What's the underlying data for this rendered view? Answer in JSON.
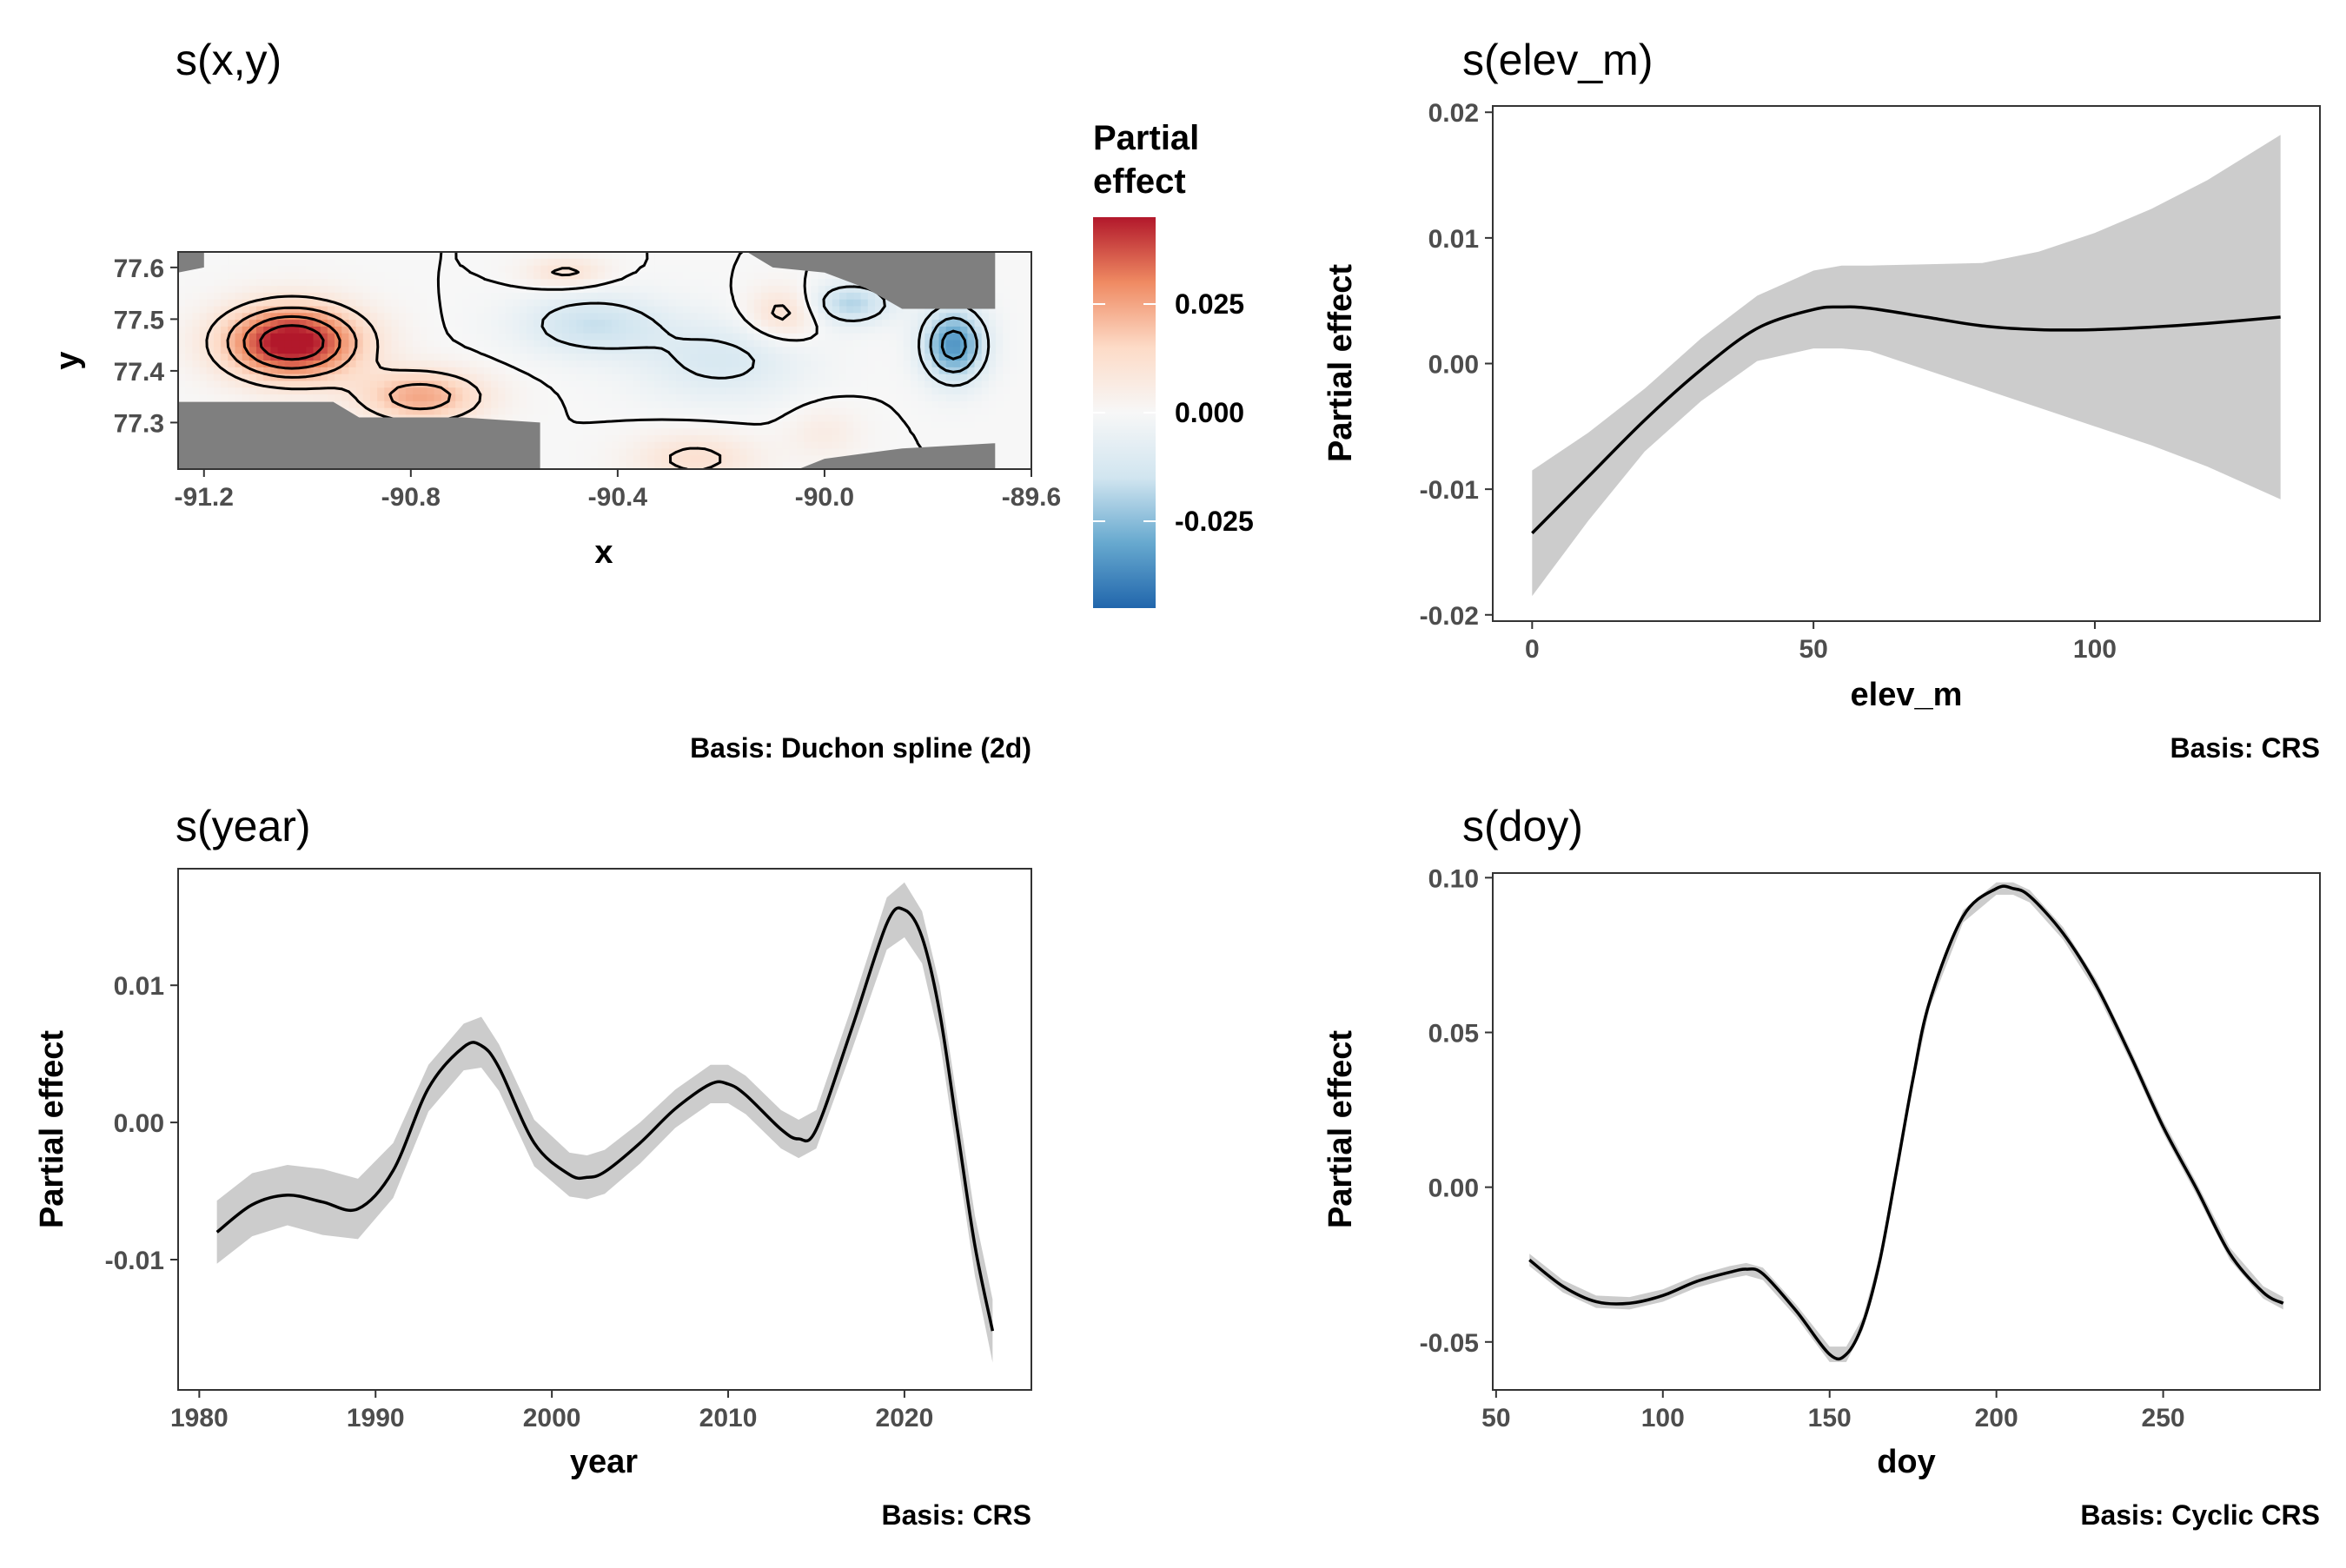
{
  "chart_data": [
    {
      "id": "sxy",
      "type": "heatmap",
      "title": "s(x,y)",
      "xlabel": "x",
      "ylabel": "y",
      "xlim": [
        -91.25,
        -89.6
      ],
      "ylim": [
        77.21,
        77.63
      ],
      "xticks": [
        -91.2,
        -90.8,
        -90.4,
        -90.0,
        -89.6
      ],
      "xtick_labels": [
        "-91.2",
        "-90.8",
        "-90.4",
        "-90.0",
        "-89.6"
      ],
      "yticks": [
        77.3,
        77.4,
        77.5,
        77.6
      ],
      "ytick_labels": [
        "77.3",
        "77.4",
        "77.5",
        "77.6"
      ],
      "legend": {
        "title_lines": [
          "Partial",
          "effect"
        ],
        "range": [
          -0.045,
          0.045
        ],
        "ticks": [
          0.025,
          0.0,
          -0.025
        ],
        "tick_labels": [
          "0.025",
          "0.000",
          "-0.025"
        ],
        "colors": [
          "#b2182b",
          "#ef8a62",
          "#fddbc7",
          "#f7f7f7",
          "#d1e5f0",
          "#67a9cf",
          "#2166ac"
        ],
        "placement": "right"
      },
      "blobs": [
        {
          "x": -91.03,
          "y": 77.455,
          "sx": 0.13,
          "sy": 0.07,
          "value": 0.05
        },
        {
          "x": -90.78,
          "y": 77.35,
          "sx": 0.12,
          "sy": 0.05,
          "value": 0.025
        },
        {
          "x": -90.5,
          "y": 77.59,
          "sx": 0.08,
          "sy": 0.03,
          "value": 0.012
        },
        {
          "x": -90.45,
          "y": 77.49,
          "sx": 0.14,
          "sy": 0.06,
          "value": -0.016
        },
        {
          "x": -90.2,
          "y": 77.42,
          "sx": 0.16,
          "sy": 0.08,
          "value": -0.012
        },
        {
          "x": -90.08,
          "y": 77.51,
          "sx": 0.07,
          "sy": 0.05,
          "value": 0.014
        },
        {
          "x": -89.95,
          "y": 77.53,
          "sx": 0.08,
          "sy": 0.04,
          "value": -0.02
        },
        {
          "x": -89.75,
          "y": 77.45,
          "sx": 0.06,
          "sy": 0.07,
          "value": -0.035
        },
        {
          "x": -90.25,
          "y": 77.23,
          "sx": 0.12,
          "sy": 0.05,
          "value": 0.012
        },
        {
          "x": -90.0,
          "y": 77.28,
          "sx": 0.07,
          "sy": 0.05,
          "value": 0.006
        }
      ],
      "missing_regions": [
        [
          [
            -91.25,
            77.21
          ],
          [
            -91.25,
            77.34
          ],
          [
            -90.95,
            77.34
          ],
          [
            -90.9,
            77.31
          ],
          [
            -90.7,
            77.31
          ],
          [
            -90.55,
            77.3
          ],
          [
            -90.55,
            77.21
          ]
        ],
        [
          [
            -90.15,
            77.63
          ],
          [
            -89.67,
            77.63
          ],
          [
            -89.67,
            77.52
          ],
          [
            -89.85,
            77.52
          ],
          [
            -89.92,
            77.56
          ],
          [
            -90.0,
            77.59
          ],
          [
            -90.1,
            77.6
          ]
        ],
        [
          [
            -90.05,
            77.21
          ],
          [
            -89.67,
            77.21
          ],
          [
            -89.67,
            77.26
          ],
          [
            -89.85,
            77.25
          ],
          [
            -90.0,
            77.23
          ]
        ],
        [
          [
            -91.25,
            77.63
          ],
          [
            -91.2,
            77.63
          ],
          [
            -91.2,
            77.6
          ],
          [
            -91.25,
            77.59
          ]
        ]
      ],
      "caption": "Basis: Duchon spline (2d)"
    },
    {
      "id": "selev",
      "type": "line",
      "title": "s(elev_m)",
      "xlabel": "elev_m",
      "ylabel": "Partial effect",
      "xlim": [
        -7,
        140
      ],
      "ylim": [
        -0.0205,
        0.0205
      ],
      "xticks": [
        0,
        50,
        100
      ],
      "xtick_labels": [
        "0",
        "50",
        "100"
      ],
      "yticks": [
        -0.02,
        -0.01,
        0.0,
        0.01,
        0.02
      ],
      "ytick_labels": [
        "-0.02",
        "-0.01",
        "0.00",
        "0.01",
        "0.02"
      ],
      "grid": false,
      "x": [
        0,
        10,
        20,
        30,
        40,
        50,
        55,
        60,
        70,
        80,
        90,
        100,
        110,
        120,
        133
      ],
      "y": [
        -0.0135,
        -0.009,
        -0.0045,
        -0.0005,
        0.0028,
        0.0043,
        0.0045,
        0.0044,
        0.0037,
        0.003,
        0.0027,
        0.0027,
        0.0029,
        0.0032,
        0.0037
      ],
      "lower": [
        -0.0185,
        -0.0125,
        -0.007,
        -0.003,
        0.0002,
        0.0012,
        0.0012,
        0.001,
        -0.0005,
        -0.002,
        -0.0035,
        -0.005,
        -0.0065,
        -0.0082,
        -0.0108
      ],
      "upper": [
        -0.0085,
        -0.0055,
        -0.002,
        0.002,
        0.0054,
        0.0074,
        0.0078,
        0.0078,
        0.0079,
        0.008,
        0.0089,
        0.0104,
        0.0123,
        0.0146,
        0.0182
      ],
      "caption": "Basis: CRS"
    },
    {
      "id": "syear",
      "type": "line",
      "title": "s(year)",
      "xlabel": "year",
      "ylabel": "Partial effect",
      "xlim": [
        1978.8,
        2027.2
      ],
      "ylim": [
        -0.0195,
        0.0185
      ],
      "xticks": [
        1980,
        1990,
        2000,
        2010,
        2020
      ],
      "xtick_labels": [
        "1980",
        "1990",
        "2000",
        "2010",
        "2020"
      ],
      "yticks": [
        -0.01,
        0.0,
        0.01
      ],
      "ytick_labels": [
        "-0.01",
        "0.00",
        "0.01"
      ],
      "grid": false,
      "x": [
        1981,
        1983,
        1985,
        1987,
        1989,
        1991,
        1993,
        1995,
        1996,
        1997,
        1999,
        2001,
        2002,
        2003,
        2005,
        2007,
        2009,
        2010,
        2011,
        2013,
        2014,
        2015,
        2017,
        2019,
        2020,
        2021,
        2022,
        2023,
        2024,
        2025
      ],
      "y": [
        -0.008,
        -0.006,
        -0.0053,
        -0.0058,
        -0.0063,
        -0.0035,
        0.0025,
        0.0055,
        0.0056,
        0.004,
        -0.0015,
        -0.0038,
        -0.004,
        -0.0036,
        -0.0015,
        0.001,
        0.0028,
        0.0028,
        0.002,
        -0.0005,
        -0.0012,
        -0.0005,
        0.0068,
        0.0145,
        0.0155,
        0.0135,
        0.008,
        -0.0005,
        -0.009,
        -0.0152
      ],
      "lower": [
        -0.0103,
        -0.0083,
        -0.0075,
        -0.0082,
        -0.0085,
        -0.0055,
        0.0008,
        0.0038,
        0.004,
        0.0023,
        -0.0032,
        -0.0054,
        -0.0056,
        -0.0052,
        -0.003,
        -0.0004,
        0.0014,
        0.0014,
        0.0006,
        -0.0019,
        -0.0026,
        -0.0019,
        0.0052,
        0.0126,
        0.0135,
        0.0116,
        0.006,
        -0.0026,
        -0.0112,
        -0.0175
      ],
      "upper": [
        -0.0057,
        -0.0037,
        -0.0031,
        -0.0034,
        -0.0041,
        -0.0015,
        0.0042,
        0.0072,
        0.0077,
        0.0057,
        0.0002,
        -0.0022,
        -0.0024,
        -0.002,
        0.0,
        0.0024,
        0.0042,
        0.0042,
        0.0034,
        0.0009,
        0.0002,
        0.0009,
        0.0084,
        0.0164,
        0.0175,
        0.0154,
        0.01,
        0.0016,
        -0.0068,
        -0.0129
      ],
      "caption": "Basis: CRS"
    },
    {
      "id": "sdoy",
      "type": "line",
      "title": "s(doy)",
      "xlabel": "doy",
      "ylabel": "Partial effect",
      "xlim": [
        49,
        297
      ],
      "ylim": [
        -0.0655,
        0.1015
      ],
      "xticks": [
        50,
        100,
        150,
        200,
        250
      ],
      "xtick_labels": [
        "50",
        "100",
        "150",
        "200",
        "250"
      ],
      "yticks": [
        -0.05,
        0.0,
        0.05,
        0.1
      ],
      "ytick_labels": [
        "-0.05",
        "0.00",
        "0.05",
        "0.10"
      ],
      "grid": false,
      "x": [
        60,
        70,
        80,
        90,
        100,
        110,
        120,
        125,
        130,
        140,
        150,
        155,
        160,
        165,
        170,
        175,
        180,
        190,
        200,
        205,
        210,
        220,
        230,
        240,
        250,
        260,
        270,
        280,
        286
      ],
      "y": [
        -0.0235,
        -0.032,
        -0.037,
        -0.0375,
        -0.035,
        -0.0305,
        -0.0275,
        -0.0265,
        -0.028,
        -0.04,
        -0.054,
        -0.054,
        -0.044,
        -0.024,
        0.005,
        0.035,
        0.06,
        0.0875,
        0.0965,
        0.0965,
        0.094,
        0.082,
        0.065,
        0.043,
        0.0195,
        -0.0005,
        -0.0215,
        -0.034,
        -0.0375
      ],
      "lower": [
        -0.0255,
        -0.034,
        -0.039,
        -0.0395,
        -0.037,
        -0.0325,
        -0.0295,
        -0.0285,
        -0.03,
        -0.042,
        -0.0565,
        -0.0565,
        -0.046,
        -0.026,
        0.003,
        0.033,
        0.058,
        0.0855,
        0.0945,
        0.0945,
        0.092,
        0.08,
        0.063,
        0.041,
        0.0175,
        -0.0025,
        -0.0235,
        -0.036,
        -0.0395
      ],
      "upper": [
        -0.0215,
        -0.03,
        -0.035,
        -0.0355,
        -0.033,
        -0.0285,
        -0.0255,
        -0.0245,
        -0.026,
        -0.038,
        -0.0515,
        -0.0515,
        -0.042,
        -0.022,
        0.007,
        0.037,
        0.062,
        0.0895,
        0.0985,
        0.0985,
        0.096,
        0.084,
        0.067,
        0.045,
        0.0215,
        0.0015,
        -0.0195,
        -0.032,
        -0.0355
      ],
      "caption": "Basis: Cyclic CRS"
    }
  ]
}
